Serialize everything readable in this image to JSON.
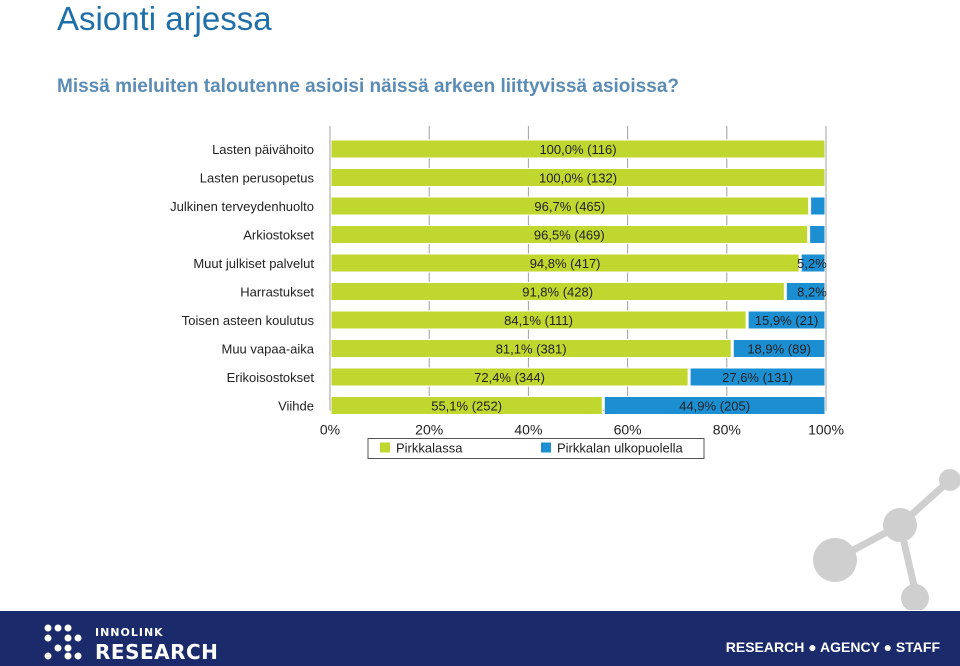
{
  "slide": {
    "title": "Asionti arjessa",
    "subtitle": "Missä mieluiten taloutenne asioisi näissä arkeen liittyvissä asioissa?"
  },
  "chart_data": {
    "type": "bar",
    "orientation": "horizontal",
    "stacked": true,
    "categories": [
      "Lasten päivähoito",
      "Lasten perusopetus",
      "Julkinen terveydenhuolto",
      "Arkiostokset",
      "Muut julkiset palvelut",
      "Harrastukset",
      "Toisen asteen koulutus",
      "Muu vapaa-aika",
      "Erikoisostokset",
      "Viihde"
    ],
    "series": [
      {
        "name": "Pirkkalassa",
        "color": "#c0d72f",
        "values": [
          100.0,
          100.0,
          96.7,
          96.5,
          94.8,
          91.8,
          84.1,
          81.1,
          72.4,
          55.1
        ],
        "labels": [
          "100,0% (116)",
          "100,0% (132)",
          "96,7% (465)",
          "96,5% (469)",
          "94,8% (417)",
          "91,8% (428)",
          "84,1% (111)",
          "81,1% (381)",
          "72,4% (344)",
          "55,1% (252)"
        ]
      },
      {
        "name": "Pirkkalan ulkopuolella",
        "color": "#1b8fd2",
        "values": [
          0.0,
          0.0,
          3.3,
          3.5,
          5.2,
          8.2,
          15.9,
          18.9,
          27.6,
          44.9
        ],
        "labels": [
          "",
          "",
          "",
          "",
          "5,2%",
          "8,2%",
          "15,9% (21)",
          "18,9% (89)",
          "27,6% (131)",
          "44,9% (205)"
        ]
      }
    ],
    "xlim": [
      0,
      100
    ],
    "xticks": [
      "0%",
      "20%",
      "40%",
      "60%",
      "80%",
      "100%"
    ],
    "legend_position": "bottom"
  },
  "footer": {
    "logo_top": "INNOLINK",
    "logo_bottom": "RESEARCH",
    "tagline": "RESEARCH ● AGENCY ● STAFF"
  }
}
